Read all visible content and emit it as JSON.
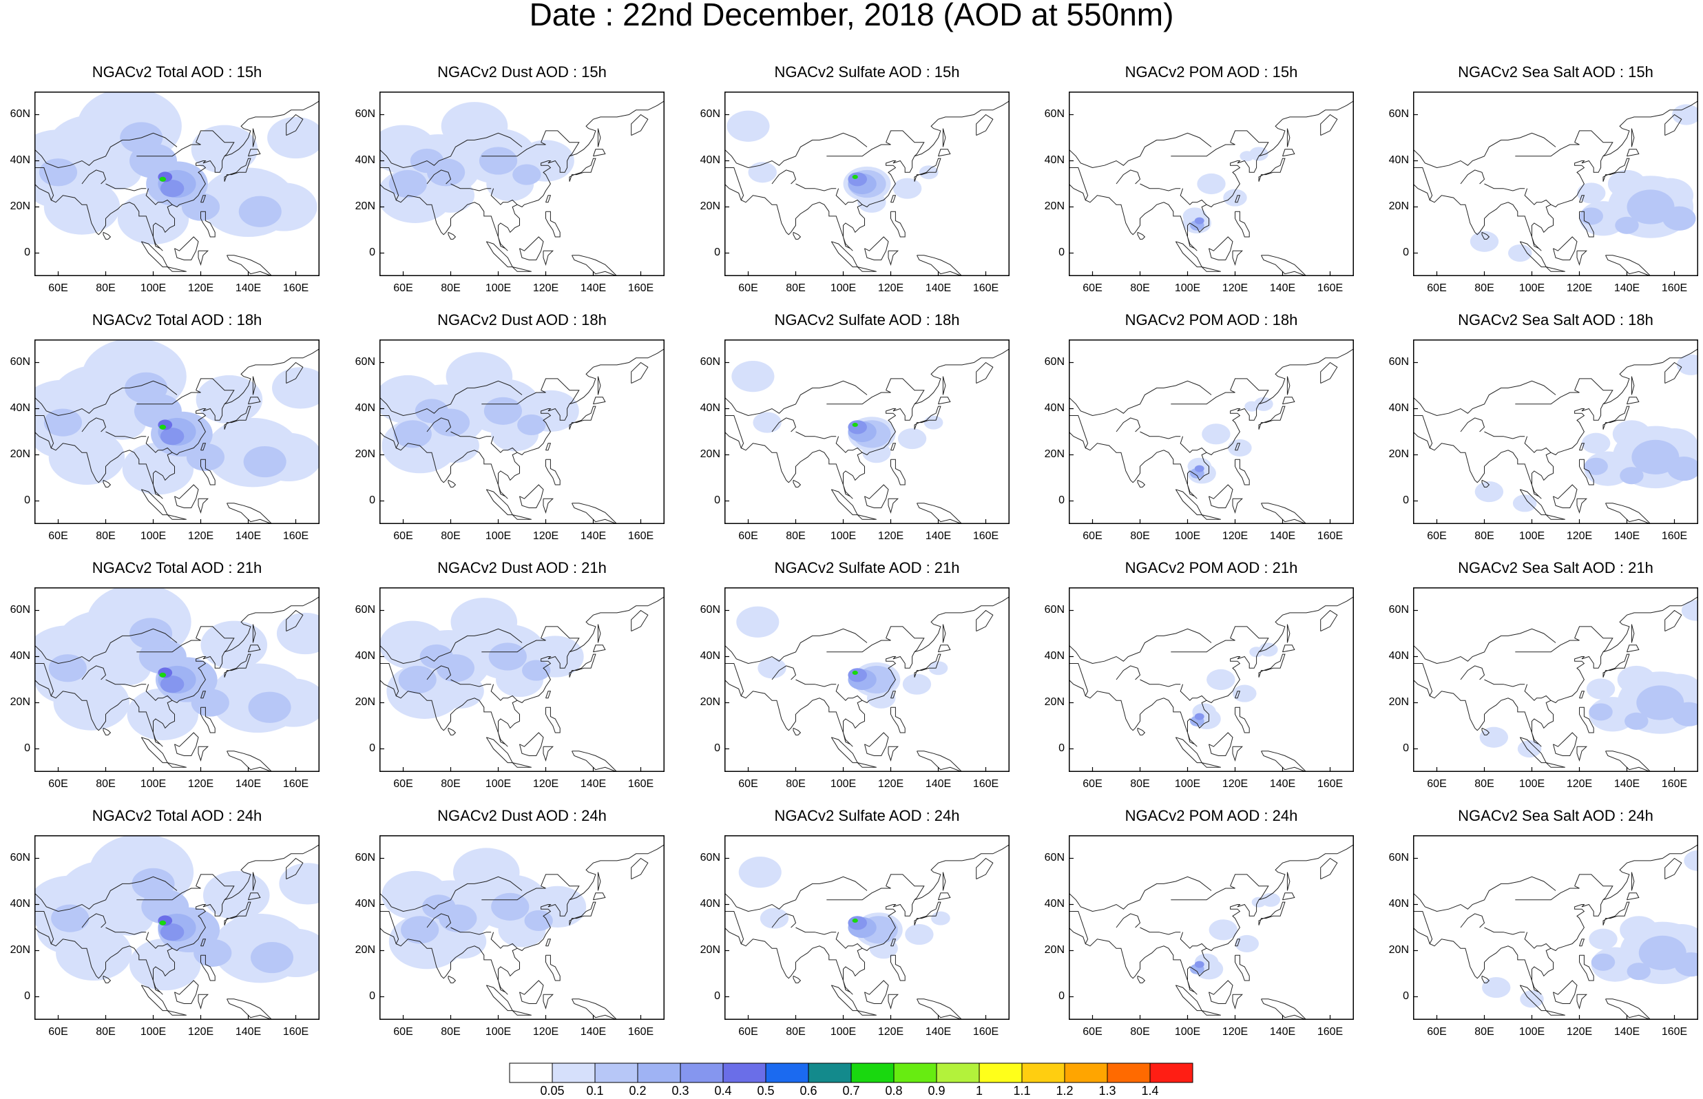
{
  "figure": {
    "title": "Date : 22nd December, 2018 (AOD at 550nm)"
  },
  "axes": {
    "lat_ticks": [
      "60N",
      "40N",
      "20N",
      "0"
    ],
    "lon_ticks": [
      "60E",
      "80E",
      "100E",
      "120E",
      "140E",
      "160E"
    ]
  },
  "rows": [
    {
      "hour": "15h",
      "titles": [
        "NGACv2 Total AOD : 15h",
        "NGACv2 Dust AOD : 15h",
        "NGACv2 Sulfate AOD : 15h",
        "NGACv2 POM AOD : 15h",
        "NGACv2 Sea Salt AOD : 15h"
      ]
    },
    {
      "hour": "18h",
      "titles": [
        "NGACv2 Total AOD : 18h",
        "NGACv2 Dust AOD : 18h",
        "NGACv2 Sulfate AOD : 18h",
        "NGACv2 POM AOD : 18h",
        "NGACv2 Sea Salt AOD : 18h"
      ]
    },
    {
      "hour": "21h",
      "titles": [
        "NGACv2 Total AOD : 21h",
        "NGACv2 Dust AOD : 21h",
        "NGACv2 Sulfate AOD : 21h",
        "NGACv2 POM AOD : 21h",
        "NGACv2 Sea Salt AOD : 21h"
      ]
    },
    {
      "hour": "24h",
      "titles": [
        "NGACv2 Total AOD : 24h",
        "NGACv2 Dust AOD : 24h",
        "NGACv2 Sulfate AOD : 24h",
        "NGACv2 POM AOD : 24h",
        "NGACv2 Sea Salt  AOD : 24h"
      ]
    }
  ],
  "colorbar": {
    "labels": [
      "0.05",
      "0.1",
      "0.2",
      "0.3",
      "0.4",
      "0.5",
      "0.6",
      "0.7",
      "0.8",
      "0.9",
      "1",
      "1.1",
      "1.2",
      "1.3",
      "1.4"
    ],
    "colors": [
      "#ffffff",
      "#d6e0fb",
      "#b7c7f7",
      "#9fb3f4",
      "#8596ef",
      "#6a6ee8",
      "#1b6af0",
      "#138a8c",
      "#19d80f",
      "#67ec11",
      "#b3f23b",
      "#ffff1a",
      "#ffce10",
      "#ffa500",
      "#ff6a00",
      "#ff1e14"
    ]
  }
}
